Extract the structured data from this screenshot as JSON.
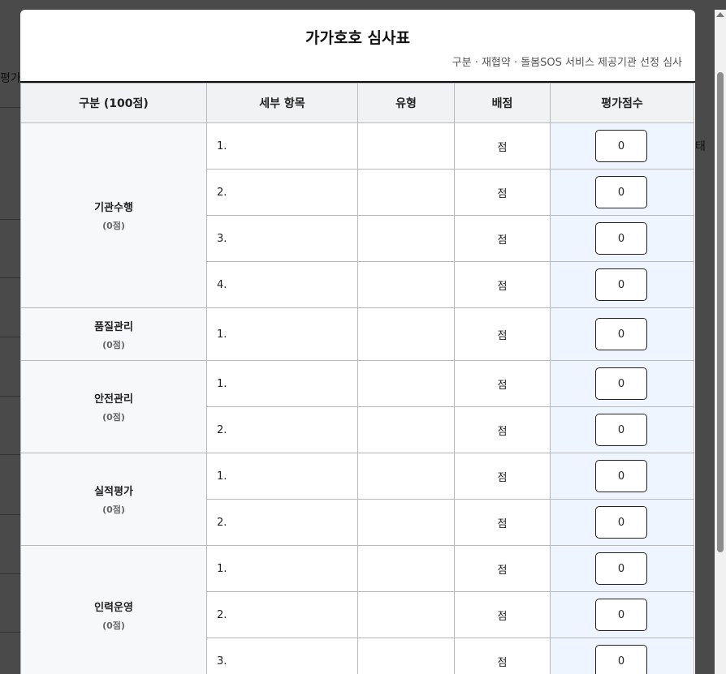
{
  "background": {
    "left_text": "평가",
    "right_text": "태"
  },
  "modal": {
    "title": "가가호호 심사표",
    "subtitle": "구분 · 재협약 · 돌봄SOS 서비스 제공기관 선정 심사"
  },
  "table": {
    "headers": [
      "구분 (100점)",
      "세부 항목",
      "유형",
      "배점",
      "평가점수"
    ],
    "point_unit": "점",
    "categories": [
      {
        "name": "기관수행",
        "score": "(0점)",
        "items": [
          "1.",
          "2.",
          "3.",
          "4."
        ],
        "values": [
          "0",
          "0",
          "0",
          "0"
        ]
      },
      {
        "name": "품질관리",
        "score": "(0점)",
        "items": [
          "1."
        ],
        "values": [
          "0"
        ]
      },
      {
        "name": "안전관리",
        "score": "(0점)",
        "items": [
          "1.",
          "2."
        ],
        "values": [
          "0",
          "0"
        ]
      },
      {
        "name": "실적평가",
        "score": "(0점)",
        "items": [
          "1.",
          "2."
        ],
        "values": [
          "0",
          "0"
        ]
      },
      {
        "name": "인력운영",
        "score": "(0점)",
        "items": [
          "1.",
          "2.",
          "3."
        ],
        "values": [
          "0",
          "0",
          "0"
        ]
      }
    ]
  }
}
